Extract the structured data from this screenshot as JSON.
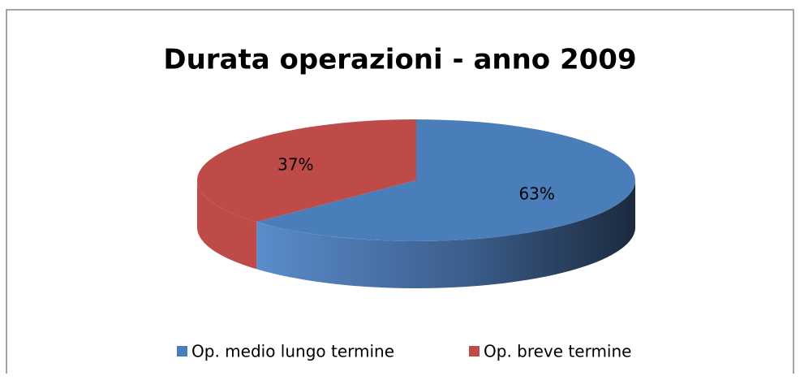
{
  "chart_data": {
    "type": "pie",
    "title": "Durata operazioni - anno 2009",
    "categories": [
      "Op. medio lungo termine",
      "Op. breve termine"
    ],
    "values": [
      63,
      37
    ],
    "value_labels": [
      "63%",
      "37%"
    ],
    "colors": [
      "#4a7ebb",
      "#be4b48"
    ],
    "legend": "bottom"
  }
}
